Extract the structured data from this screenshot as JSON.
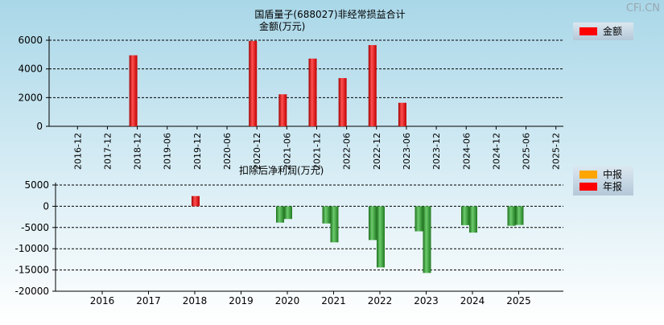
{
  "watermark": "CFi.CN",
  "colors": {
    "bg_top": "#a9d7e8",
    "bg_bottom": "#ffffff",
    "red": "#e02020",
    "red_dark": "#b01010",
    "green": "#2f8f2f",
    "green_light": "#5cc05c",
    "orange": "#ffa500",
    "legend_bg": "#bcd0e0"
  },
  "chart_data": [
    {
      "type": "bar",
      "title": "国盾量子(688027)非经常损益合计",
      "ylabel": "金额(万元)",
      "xlabel": "",
      "grid": true,
      "legend": {
        "position": "top-right",
        "items": [
          {
            "label": "金额",
            "color": "#ff0000"
          }
        ]
      },
      "ylim": [
        0,
        6000
      ],
      "yticks": [
        0,
        2000,
        4000,
        6000
      ],
      "categories": [
        "2016-12",
        "2017-12",
        "2018-12",
        "2019-06",
        "2019-12",
        "2020-06",
        "2020-12",
        "2021-06",
        "2021-12",
        "2022-06",
        "2022-12",
        "2023-06",
        "2023-12",
        "2024-06",
        "2024-12",
        "2025-06",
        "2025-12"
      ],
      "values": [
        null,
        null,
        4950,
        null,
        null,
        null,
        5950,
        2230,
        4720,
        3360,
        5660,
        1640,
        null,
        null,
        null,
        null,
        null
      ]
    },
    {
      "type": "bar",
      "title": "扣除后净利润(万元)",
      "xlabel": "",
      "ylabel": "",
      "grid": true,
      "legend": {
        "position": "top-right",
        "items": [
          {
            "label": "中报",
            "color": "#ffa500"
          },
          {
            "label": "年报",
            "color": "#ff0000"
          }
        ]
      },
      "ylim": [
        -20000,
        5000
      ],
      "yticks": [
        -20000,
        -15000,
        -10000,
        -5000,
        0,
        5000
      ],
      "categories": [
        "2016",
        "2017",
        "2018",
        "2019",
        "2020",
        "2021",
        "2022",
        "2023",
        "2024",
        "2025"
      ],
      "series": [
        {
          "name": "中报",
          "values": [
            null,
            null,
            null,
            null,
            -3850,
            -4050,
            -7950,
            -5900,
            -4450,
            -4600
          ]
        },
        {
          "name": "年报",
          "values": [
            null,
            null,
            2400,
            null,
            -3000,
            -8500,
            -14400,
            -15700,
            -6200,
            -4400
          ]
        }
      ]
    }
  ]
}
